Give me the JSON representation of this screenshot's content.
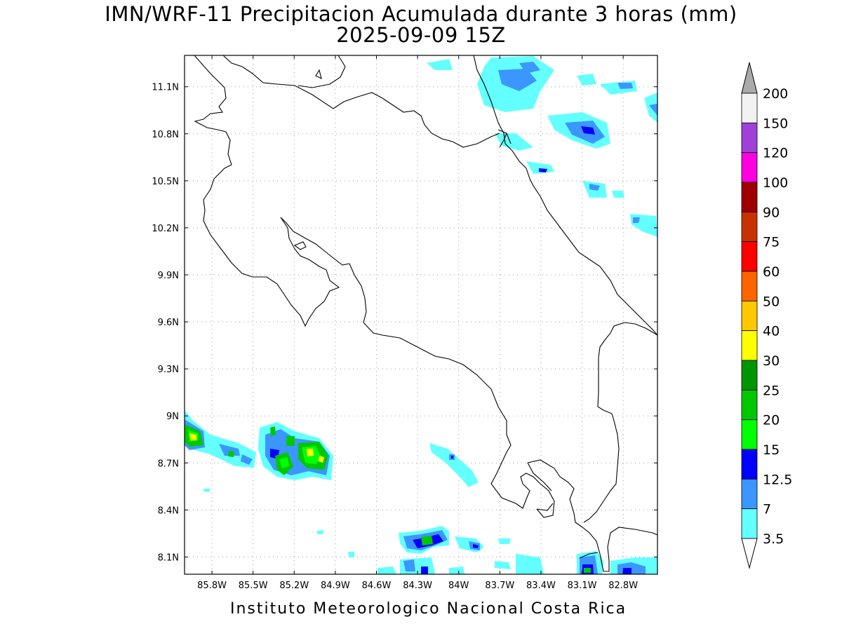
{
  "title_line1": "IMN/WRF-11 Precipitacion Acumulada durante 3 horas (mm)",
  "title_line2": "2025-09-09 15Z",
  "footer": "Instituto Meteorologico Nacional Costa Rica",
  "map": {
    "lon_range": [
      -86.0,
      -82.55
    ],
    "lat_range": [
      7.99,
      11.3
    ],
    "lon_ticks": [
      "85.8W",
      "85.5W",
      "85.2W",
      "84.9W",
      "84.6W",
      "84.3W",
      "84W",
      "83.7W",
      "83.4W",
      "83.1W",
      "82.8W"
    ],
    "lat_ticks": [
      "11.1N",
      "10.8N",
      "10.5N",
      "10.2N",
      "9.9N",
      "9.6N",
      "9.3N",
      "9N",
      "8.7N",
      "8.4N",
      "8.1N"
    ],
    "grid": true
  },
  "colorbar": {
    "levels": [
      "200",
      "150",
      "120",
      "100",
      "90",
      "75",
      "60",
      "50",
      "40",
      "30",
      "25",
      "20",
      "15",
      "12.5",
      "7",
      "3.5"
    ],
    "colors": [
      "#f2f2f2",
      "#a040d8",
      "#ff00e0",
      "#a00000",
      "#c83200",
      "#ff0000",
      "#ff6400",
      "#ffc800",
      "#ffff00",
      "#009600",
      "#00c800",
      "#00ff00",
      "#0000ff",
      "#3c96ff",
      "#64ffff"
    ],
    "over_color": "#aaaaaa",
    "under_color": "#ffffff"
  }
}
